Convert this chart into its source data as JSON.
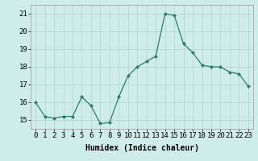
{
  "x": [
    0,
    1,
    2,
    3,
    4,
    5,
    6,
    7,
    8,
    9,
    10,
    11,
    12,
    13,
    14,
    15,
    16,
    17,
    18,
    19,
    20,
    21,
    22,
    23
  ],
  "y": [
    16.0,
    15.2,
    15.1,
    15.2,
    15.2,
    16.3,
    15.8,
    14.8,
    14.85,
    16.3,
    17.5,
    18.0,
    18.3,
    18.6,
    21.0,
    20.9,
    19.3,
    18.8,
    18.1,
    18.0,
    18.0,
    17.7,
    17.6,
    16.9
  ],
  "line_color": "#2e7d6e",
  "marker": "D",
  "marker_size": 2.0,
  "bg_color": "#cdecea",
  "grid_color": "#b0d4d0",
  "xlabel": "Humidex (Indice chaleur)",
  "xlabel_fontsize": 7,
  "tick_fontsize": 6.5,
  "ylim": [
    14.5,
    21.5
  ],
  "xlim": [
    -0.5,
    23.5
  ],
  "yticks": [
    15,
    16,
    17,
    18,
    19,
    20,
    21
  ],
  "xticks": [
    0,
    1,
    2,
    3,
    4,
    5,
    6,
    7,
    8,
    9,
    10,
    11,
    12,
    13,
    14,
    15,
    16,
    17,
    18,
    19,
    20,
    21,
    22,
    23
  ]
}
